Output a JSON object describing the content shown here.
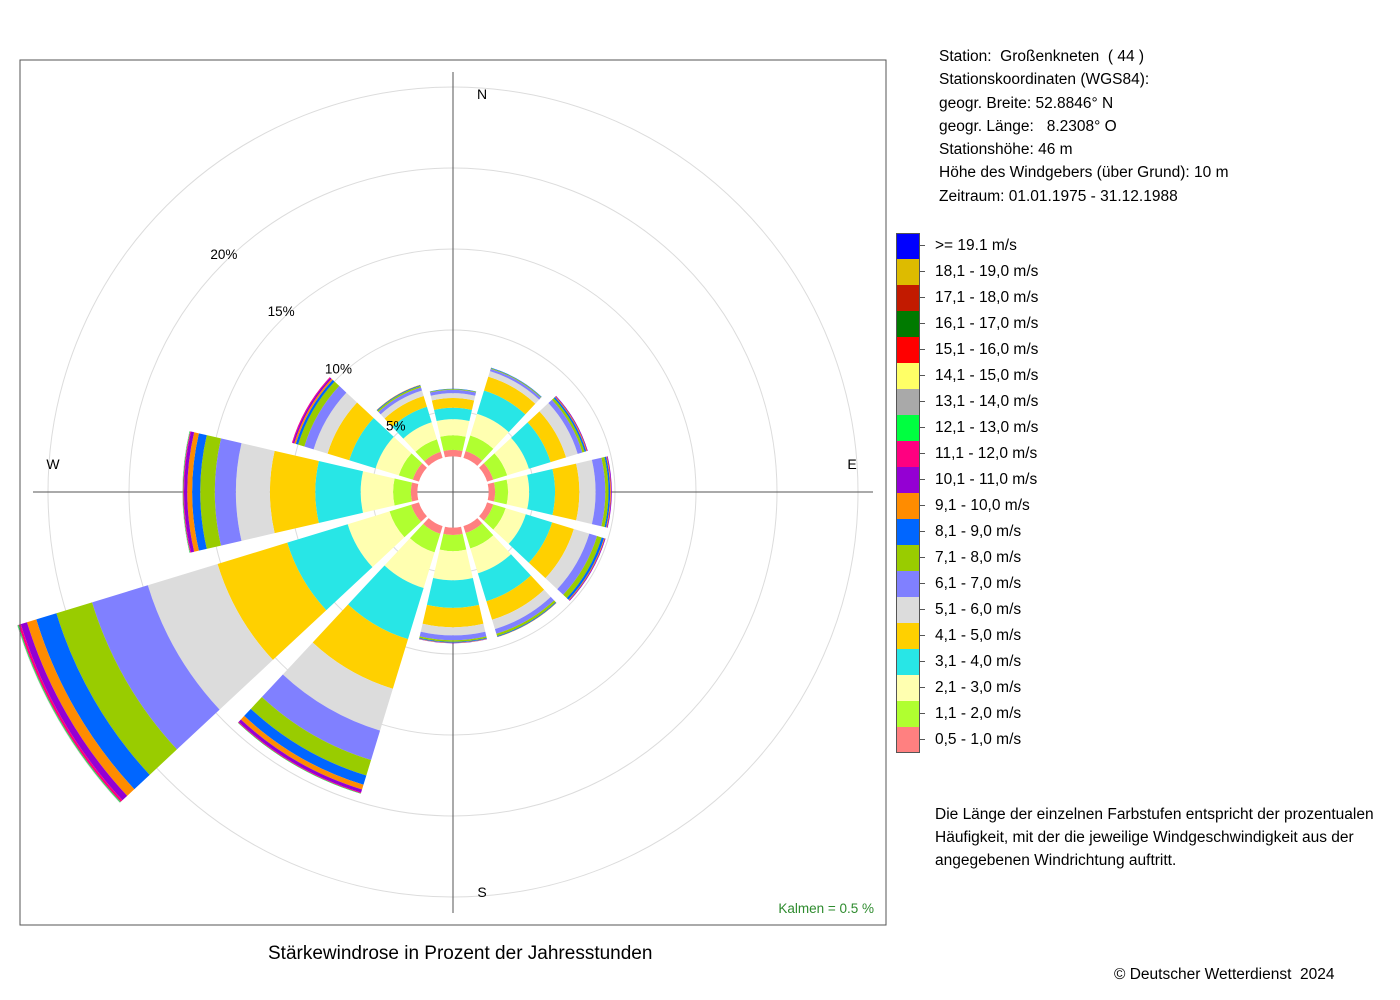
{
  "station": {
    "lines": [
      "Station:  Großenkneten  ( 44 )",
      "Stationskoordinaten (WGS84):",
      "geogr. Breite: 52.8846° N",
      "geogr. Länge:   8.2308° O",
      "Stationshöhe: 46 m",
      "Höhe des Windgebers (über Grund): 10 m",
      "Zeitraum: 01.01.1975 - 31.12.1988"
    ]
  },
  "description": [
    "Die Länge der einzelnen Farbstufen entspricht der prozentualen",
    "Häufigkeit, mit der die jeweilige Windgeschwindigkeit aus der",
    "angegebenen Windrichtung auftritt."
  ],
  "caption": "Stärkewindrose in Prozent der Jahresstunden",
  "copyright": "© Deutscher Wetterdienst  2024",
  "chart_data": {
    "type": "wind-rose",
    "title": "Stärkewindrose in Prozent der Jahresstunden",
    "directions_deg": [
      0,
      30,
      60,
      90,
      120,
      150,
      180,
      210,
      240,
      270,
      300,
      330
    ],
    "compass_labels": {
      "N": "N",
      "E": "E",
      "S": "S",
      "W": "W"
    },
    "radial_ticks": [
      5,
      10,
      15,
      20
    ],
    "radial_tick_labels": [
      "5%",
      "10%",
      "15%",
      "20%"
    ],
    "radial_max": 25,
    "inner_hole_pct": 2.2,
    "calm_label": "Kalmen  =  0.5 %",
    "calm_percent": 0.5,
    "legend": [
      {
        "label": ">= 19.1 m/s",
        "color": "#0000FF"
      },
      {
        "label": "18,1 - 19,0 m/s",
        "color": "#DDBB00"
      },
      {
        "label": "17,1 - 18,0 m/s",
        "color": "#C21A00"
      },
      {
        "label": "16,1 - 17,0 m/s",
        "color": "#007A00"
      },
      {
        "label": "15,1 - 16,0 m/s",
        "color": "#FF0000"
      },
      {
        "label": "14,1 - 15,0 m/s",
        "color": "#FFFF66"
      },
      {
        "label": "13,1 - 14,0 m/s",
        "color": "#A9A9A9"
      },
      {
        "label": "12,1 - 13,0 m/s",
        "color": "#00FF40"
      },
      {
        "label": "11,1 - 12,0 m/s",
        "color": "#FF0080"
      },
      {
        "label": "10,1 - 11,0 m/s",
        "color": "#9400D3"
      },
      {
        "label": "9,1 - 10,0 m/s",
        "color": "#FF8C00"
      },
      {
        "label": "8,1 - 9,0 m/s",
        "color": "#0066FF"
      },
      {
        "label": "7,1 - 8,0 m/s",
        "color": "#99CC00"
      },
      {
        "label": "6,1 - 7,0 m/s",
        "color": "#8080FF"
      },
      {
        "label": "5,1 - 6,0 m/s",
        "color": "#DCDCDC"
      },
      {
        "label": "4,1 - 5,0 m/s",
        "color": "#FFD000"
      },
      {
        "label": "3,1 - 4,0 m/s",
        "color": "#28E6E6"
      },
      {
        "label": "2,1 - 3,0 m/s",
        "color": "#FFFFB0"
      },
      {
        "label": "1,1 - 2,0 m/s",
        "color": "#B0FF30"
      },
      {
        "label": "0,5 - 1,0 m/s",
        "color": "#FF8080"
      }
    ],
    "class_colors_inner_to_outer": [
      "#FF8080",
      "#B0FF30",
      "#FFFFB0",
      "#28E6E6",
      "#FFD000",
      "#DCDCDC",
      "#8080FF",
      "#99CC00",
      "#0066FF",
      "#FF8C00",
      "#9400D3",
      "#FF0080",
      "#00FF40",
      "#A9A9A9",
      "#FFFF66",
      "#FF0000",
      "#007A00",
      "#C21A00",
      "#DDBB00",
      "#0000FF"
    ],
    "series_percent_by_direction": [
      {
        "dir": 0,
        "values": [
          0.4,
          0.9,
          1.0,
          0.7,
          0.6,
          0.3,
          0.2,
          0.05,
          0.02,
          0,
          0,
          0,
          0,
          0,
          0,
          0,
          0,
          0,
          0,
          0
        ]
      },
      {
        "dir": 30,
        "values": [
          0.45,
          1.0,
          1.4,
          1.5,
          0.9,
          0.35,
          0.15,
          0.05,
          0.03,
          0,
          0,
          0,
          0,
          0,
          0,
          0,
          0,
          0,
          0,
          0
        ]
      },
      {
        "dir": 60,
        "values": [
          0.4,
          0.9,
          1.4,
          1.4,
          1.0,
          0.75,
          0.3,
          0.15,
          0.1,
          0.05,
          0.05,
          0,
          0,
          0,
          0,
          0,
          0,
          0,
          0,
          0
        ]
      },
      {
        "dir": 90,
        "values": [
          0.4,
          0.8,
          1.3,
          1.6,
          1.5,
          1.0,
          0.6,
          0.2,
          0.1,
          0.05,
          0.05,
          0,
          0,
          0,
          0,
          0,
          0,
          0,
          0,
          0
        ]
      },
      {
        "dir": 120,
        "values": [
          0.4,
          0.8,
          1.3,
          1.7,
          1.4,
          1.0,
          0.5,
          0.3,
          0.15,
          0.05,
          0.05,
          0,
          0,
          0,
          0,
          0,
          0,
          0,
          0,
          0
        ]
      },
      {
        "dir": 150,
        "values": [
          0.45,
          1.0,
          1.6,
          1.8,
          1.2,
          0.6,
          0.3,
          0.15,
          0.05,
          0.02,
          0,
          0,
          0,
          0,
          0,
          0,
          0,
          0,
          0,
          0
        ]
      },
      {
        "dir": 180,
        "values": [
          0.45,
          1.0,
          1.8,
          1.7,
          1.2,
          0.5,
          0.3,
          0.1,
          0.05,
          0.02,
          0.02,
          0,
          0,
          0,
          0,
          0,
          0,
          0,
          0,
          0
        ]
      },
      {
        "dir": 210,
        "values": [
          0.5,
          1.2,
          2.3,
          3.3,
          3.2,
          2.7,
          1.9,
          1.0,
          0.6,
          0.3,
          0.2,
          0.05,
          0.03,
          0,
          0,
          0,
          0,
          0,
          0,
          0
        ]
      },
      {
        "dir": 240,
        "values": [
          0.5,
          1.4,
          2.7,
          3.9,
          4.5,
          4.5,
          3.6,
          2.3,
          1.3,
          0.6,
          0.4,
          0.15,
          0.05,
          0.03,
          0,
          0,
          0,
          0,
          0,
          0
        ]
      },
      {
        "dir": 270,
        "values": [
          0.4,
          1.1,
          2.0,
          2.8,
          2.8,
          2.1,
          1.3,
          0.9,
          0.5,
          0.3,
          0.2,
          0.05,
          0.03,
          0.02,
          0,
          0,
          0,
          0,
          0,
          0
        ]
      },
      {
        "dir": 300,
        "values": [
          0.4,
          0.9,
          1.5,
          1.7,
          1.4,
          0.9,
          0.6,
          0.4,
          0.15,
          0.1,
          0.1,
          0.05,
          0,
          0,
          0,
          0,
          0,
          0,
          0,
          0
        ]
      },
      {
        "dir": 330,
        "values": [
          0.4,
          0.8,
          1.1,
          1.0,
          0.7,
          0.35,
          0.2,
          0.1,
          0.05,
          0.02,
          0,
          0,
          0,
          0,
          0,
          0,
          0,
          0,
          0,
          0
        ]
      }
    ]
  }
}
